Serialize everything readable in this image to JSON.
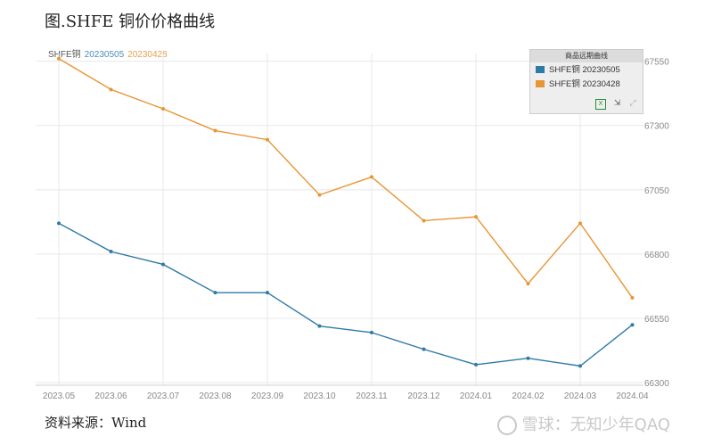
{
  "figure": {
    "title": "图.SHFE 铜价价格曲线",
    "source": "资料来源：Wind",
    "watermark": "雪球：无知少年QAQ"
  },
  "top_legend": {
    "name": "SHFE铜",
    "series1": "20230505",
    "series2": "20230428"
  },
  "legend_box": {
    "title": "商品远期曲线",
    "items": [
      "SHFE铜 20230505",
      "SHFE铜 20230428"
    ],
    "tools": [
      "excel-icon",
      "chart-icon",
      "expand-icon"
    ]
  },
  "colors": {
    "series1": "#2e7aa6",
    "series2": "#e89535",
    "grid": "#e8e8e8"
  },
  "chart_data": {
    "type": "line",
    "categories": [
      "2023.05",
      "2023.06",
      "2023.07",
      "2023.08",
      "2023.09",
      "2023.10",
      "2023.11",
      "2023.12",
      "2024.01",
      "2024.02",
      "2024.03",
      "2024.04"
    ],
    "series": [
      {
        "name": "SHFE铜 20230505",
        "values": [
          66920,
          66810,
          66760,
          66650,
          66650,
          66520,
          66495,
          66430,
          66370,
          66395,
          66365,
          66525
        ]
      },
      {
        "name": "SHFE铜 20230428",
        "values": [
          67560,
          67440,
          67365,
          67280,
          67245,
          67030,
          67100,
          66930,
          66945,
          66685,
          66920,
          66630
        ]
      }
    ],
    "ylim": [
      66290,
      67580
    ],
    "yticks": [
      66300,
      66550,
      66800,
      67050,
      67300,
      67550
    ],
    "y_axis_side": "right",
    "grid": true,
    "legend": "top-right"
  }
}
